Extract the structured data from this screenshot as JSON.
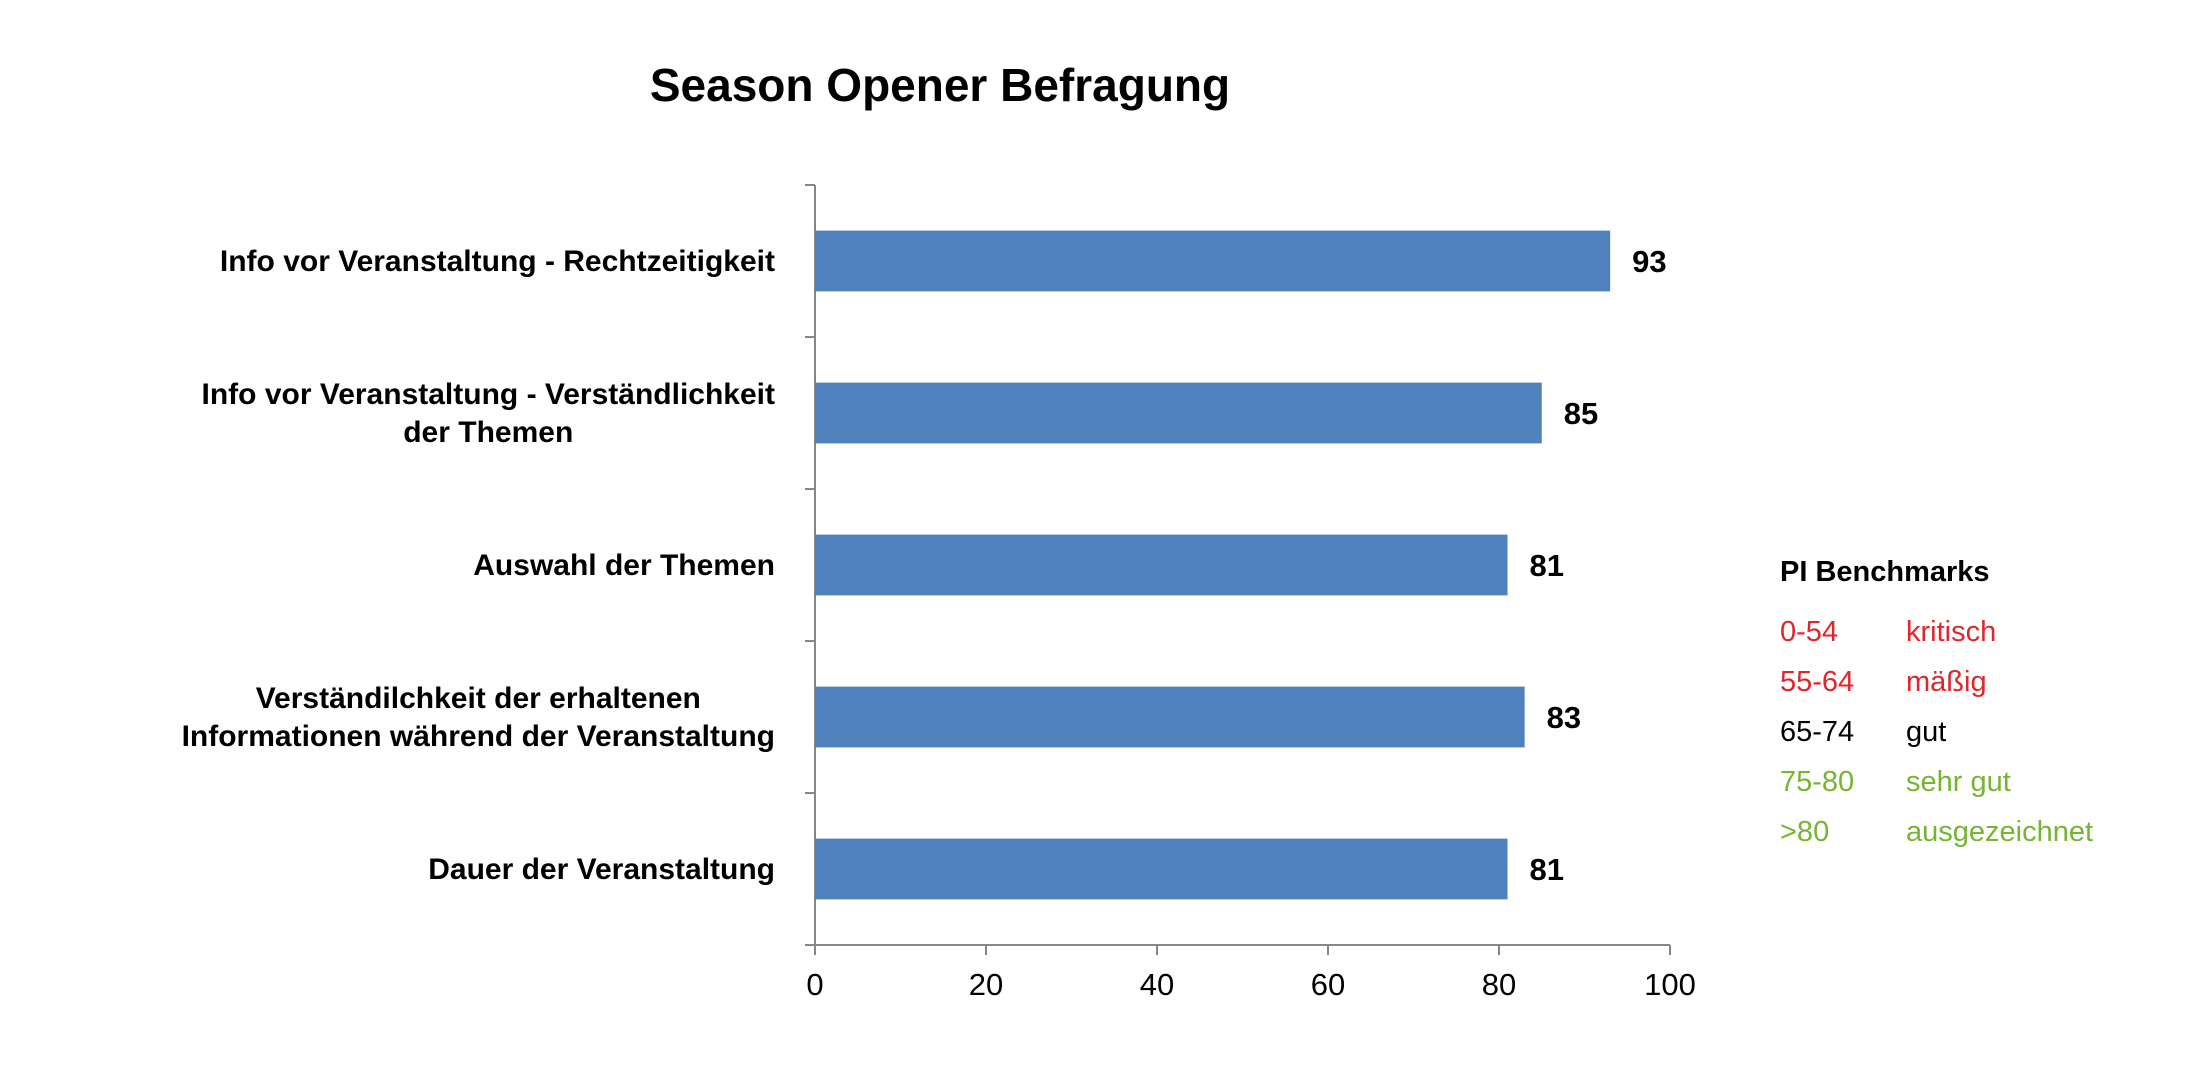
{
  "chart_data": {
    "type": "bar",
    "orientation": "horizontal",
    "title": "Season Opener Befragung",
    "categories": [
      [
        "Info vor Veranstaltung - Rechtzeitigkeit"
      ],
      [
        "Info vor Veranstaltung - Verständlichkeit",
        "der Themen"
      ],
      [
        "Auswahl der Themen"
      ],
      [
        "Verständilchkeit der erhaltenen",
        "Informationen während der Veranstaltung"
      ],
      [
        "Dauer der Veranstaltung"
      ]
    ],
    "values": [
      93,
      85,
      81,
      83,
      81
    ],
    "xlim": [
      0,
      100
    ],
    "xticks": [
      0,
      20,
      40,
      60,
      80,
      100
    ],
    "grid": false,
    "bar_color": "#4f81bd",
    "data_labels": true
  },
  "benchmarks": {
    "title": "PI Benchmarks",
    "items": [
      {
        "range": "0-54",
        "label": "kritisch",
        "color": "#e0262c"
      },
      {
        "range": "55-64",
        "label": "mäßig",
        "color": "#e0262c"
      },
      {
        "range": "65-74",
        "label": "gut",
        "color": "#000000"
      },
      {
        "range": "75-80",
        "label": "sehr gut",
        "color": "#76b531"
      },
      {
        "range": ">80",
        "label": "ausgezeichnet",
        "color": "#76b531"
      }
    ]
  }
}
